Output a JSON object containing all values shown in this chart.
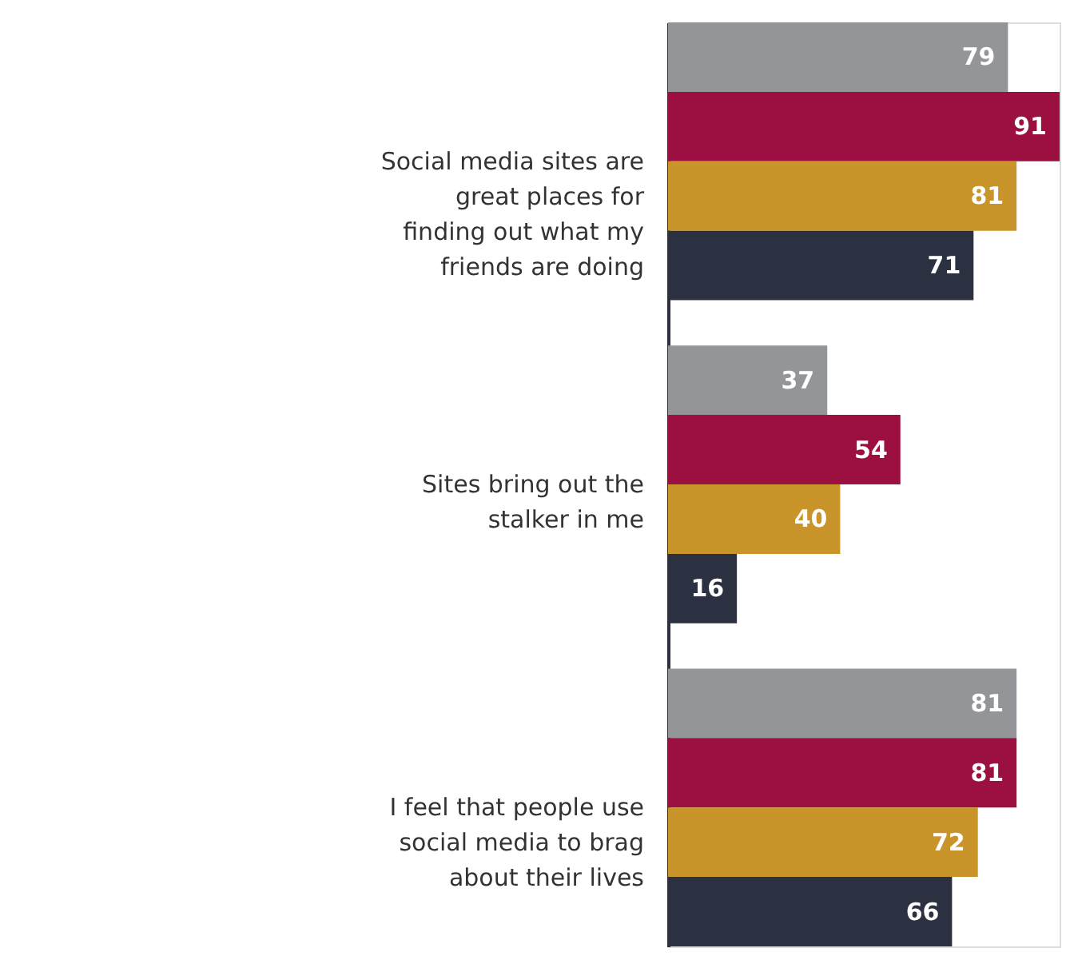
{
  "chart_data": {
    "type": "bar",
    "orientation": "horizontal",
    "categories": [
      "Social media sites are great places for finding out what my friends are doing",
      "Sites bring out the stalker in me",
      "I feel that people use social media to brag about their lives"
    ],
    "series": [
      {
        "color": "#939598",
        "values": [
          79,
          37,
          81
        ]
      },
      {
        "color": "#9b1040",
        "values": [
          91,
          54,
          81
        ]
      },
      {
        "color": "#c9942a",
        "values": [
          81,
          40,
          72
        ]
      },
      {
        "color": "#2b3140",
        "values": [
          71,
          16,
          66
        ]
      }
    ],
    "data_labels": true,
    "grid": false,
    "legend": false
  }
}
